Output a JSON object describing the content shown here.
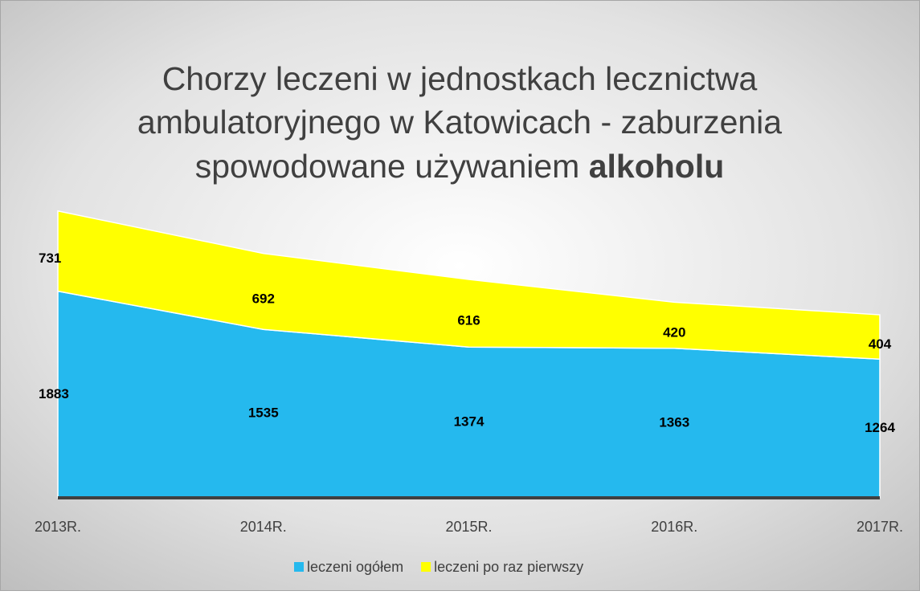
{
  "chart_data": {
    "type": "stacked_area",
    "title": [
      "Chorzy leczeni w jednostkach lecznictwa",
      "ambulatoryjnego w Katowicach - zaburzenia",
      "spowodowane używaniem"
    ],
    "title_bold": "alkoholu",
    "categories": [
      "2013R.",
      "2014R.",
      "2015R.",
      "2016R.",
      "2017R."
    ],
    "series": [
      {
        "name": "leczeni ogółem",
        "color": "#25b9ee",
        "values": [
          1883,
          1535,
          1374,
          1363,
          1264
        ]
      },
      {
        "name": "leczeni po raz pierwszy",
        "color": "#ffff00",
        "values": [
          731,
          692,
          616,
          420,
          404
        ]
      }
    ],
    "ylim": [
      0,
      2700
    ]
  }
}
